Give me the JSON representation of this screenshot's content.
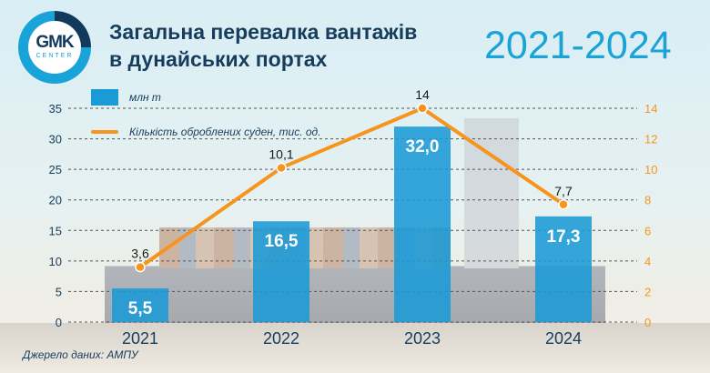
{
  "logo": {
    "text": "GMK",
    "sub": "CENTER"
  },
  "header": {
    "title_line1": "Загальна перевалка вантажів",
    "title_line2": "в дунайських портах",
    "years": "2021-2024"
  },
  "source": "Джерело даних: АМПУ",
  "colors": {
    "bar": "#1a9ad6",
    "line": "#f7941d",
    "text": "#163d5c",
    "accent": "#1aa3d6"
  },
  "chart_data": {
    "type": "bar+line",
    "categories": [
      "2021",
      "2022",
      "2023",
      "2024"
    ],
    "series": [
      {
        "name": "млн т",
        "type": "bar",
        "axis": "left",
        "values": [
          5.5,
          16.5,
          32.0,
          17.3
        ],
        "labels": [
          "5,5",
          "16,5",
          "32,0",
          "17,3"
        ]
      },
      {
        "name": "Кількість оброблених суден, тис. од.",
        "type": "line",
        "axis": "right",
        "values": [
          3.6,
          10.1,
          14,
          7.7
        ],
        "labels": [
          "3,6",
          "10,1",
          "14",
          "7,7"
        ]
      }
    ],
    "y_left": {
      "range": [
        0,
        35
      ],
      "ticks": [
        0,
        5,
        10,
        15,
        20,
        25,
        30,
        35
      ]
    },
    "y_right": {
      "range": [
        0,
        14
      ],
      "ticks": [
        0,
        2,
        4,
        6,
        8,
        10,
        12,
        14
      ]
    },
    "grid": "dashed horizontal",
    "legend": "top-left"
  }
}
